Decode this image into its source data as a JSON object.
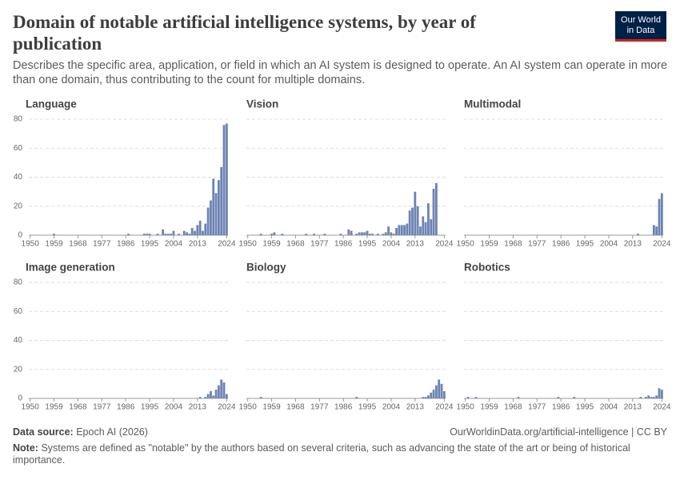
{
  "title": "Domain of notable artificial intelligence systems, by year of publication",
  "subtitle": "Describes the specific area, application, or field in which an AI system is designed to operate. An AI system can operate in more than one domain, thus contributing to the count for multiple domains.",
  "logo": [
    "Our World",
    "in Data"
  ],
  "source_label": "Data source:",
  "source": "Epoch AI (2026)",
  "url": "OurWorldinData.org/artificial-intelligence | CC BY",
  "note_label": "Note:",
  "note": "Systems are defined as \"notable\" by the authors based on several criteria, such as advancing the state of the art or being of historical importance.",
  "chart_data": [
    {
      "type": "bar",
      "title": "Language",
      "color": "#6d83b4",
      "xlim": [
        1949.5,
        2024.5
      ],
      "ylim": [
        0,
        80
      ],
      "xticks": [
        1950,
        1959,
        1968,
        1977,
        1986,
        1995,
        2004,
        2013,
        2024
      ],
      "yticks": [
        0,
        20,
        40,
        60,
        80
      ],
      "grid": true,
      "x": [
        1959,
        1987,
        1993,
        1994,
        1995,
        1998,
        2000,
        2001,
        2002,
        2003,
        2004,
        2006,
        2008,
        2009,
        2010,
        2011,
        2012,
        2013,
        2014,
        2015,
        2016,
        2017,
        2018,
        2019,
        2020,
        2021,
        2022,
        2023,
        2024
      ],
      "values": [
        1,
        1,
        1,
        1,
        1,
        1,
        4,
        1,
        1,
        1,
        3,
        1,
        3,
        2,
        1,
        5,
        3,
        7,
        10,
        3,
        8,
        19,
        24,
        39,
        29,
        38,
        47,
        76,
        77
      ]
    },
    {
      "type": "bar",
      "title": "Vision",
      "color": "#6d83b4",
      "xlim": [
        1949.5,
        2024.5
      ],
      "ylim": [
        0,
        80
      ],
      "xticks": [
        1950,
        1959,
        1968,
        1977,
        1986,
        1995,
        2004,
        2013,
        2024
      ],
      "yticks": [
        0,
        20,
        40,
        60,
        80
      ],
      "grid": true,
      "x": [
        1955,
        1959,
        1960,
        1963,
        1972,
        1975,
        1979,
        1985,
        1988,
        1989,
        1991,
        1992,
        1993,
        1994,
        1995,
        1996,
        1997,
        1999,
        2001,
        2002,
        2003,
        2004,
        2005,
        2006,
        2007,
        2008,
        2009,
        2010,
        2011,
        2012,
        2013,
        2014,
        2015,
        2016,
        2017,
        2018,
        2019,
        2020,
        2021,
        2022,
        2023,
        2024
      ],
      "values": [
        1,
        1,
        2,
        1,
        1,
        1,
        1,
        1,
        4,
        3,
        1,
        2,
        2,
        2,
        3,
        1,
        1,
        1,
        1,
        2,
        6,
        2,
        1,
        5,
        7,
        7,
        7,
        8,
        17,
        19,
        30,
        20,
        6,
        13,
        9,
        22,
        11,
        32,
        36,
        0,
        0,
        0
      ]
    },
    {
      "type": "bar",
      "title": "Multimodal",
      "color": "#6d83b4",
      "xlim": [
        1949.5,
        2024.5
      ],
      "ylim": [
        0,
        80
      ],
      "xticks": [
        1950,
        1959,
        1968,
        1977,
        1986,
        1995,
        2004,
        2013,
        2024
      ],
      "yticks": [
        0,
        20,
        40,
        60,
        80
      ],
      "grid": true,
      "x": [
        2015,
        2021,
        2022,
        2023,
        2024
      ],
      "values": [
        1,
        7,
        6,
        25,
        29
      ]
    },
    {
      "type": "bar",
      "title": "Image generation",
      "color": "#6d83b4",
      "xlim": [
        1949.5,
        2024.5
      ],
      "ylim": [
        0,
        80
      ],
      "xticks": [
        1950,
        1959,
        1968,
        1977,
        1986,
        1995,
        2004,
        2013,
        2024
      ],
      "yticks": [
        0,
        20,
        40,
        60,
        80
      ],
      "grid": true,
      "x": [
        2014,
        2016,
        2017,
        2018,
        2019,
        2020,
        2021,
        2022,
        2023,
        2024
      ],
      "values": [
        1,
        1,
        3,
        5,
        2,
        6,
        9,
        13,
        11,
        3
      ]
    },
    {
      "type": "bar",
      "title": "Biology",
      "color": "#6d83b4",
      "xlim": [
        1949.5,
        2024.5
      ],
      "ylim": [
        0,
        80
      ],
      "xticks": [
        1950,
        1959,
        1968,
        1977,
        1986,
        1995,
        2004,
        2013,
        2024
      ],
      "yticks": [
        0,
        20,
        40,
        60,
        80
      ],
      "grid": true,
      "x": [
        1955,
        1991,
        2016,
        2017,
        2018,
        2019,
        2020,
        2021,
        2022,
        2023,
        2024
      ],
      "values": [
        1,
        1,
        1,
        1,
        2,
        4,
        6,
        9,
        13,
        10,
        5
      ]
    },
    {
      "type": "bar",
      "title": "Robotics",
      "color": "#6d83b4",
      "xlim": [
        1949.5,
        2024.5
      ],
      "ylim": [
        0,
        80
      ],
      "xticks": [
        1950,
        1959,
        1968,
        1977,
        1986,
        1995,
        2004,
        2013,
        2024
      ],
      "yticks": [
        0,
        20,
        40,
        60,
        80
      ],
      "grid": true,
      "x": [
        1951,
        1954,
        1970,
        1985,
        1991,
        2016,
        2018,
        2019,
        2020,
        2021,
        2022,
        2023,
        2024
      ],
      "values": [
        1,
        1,
        1,
        1,
        1,
        1,
        1,
        2,
        1,
        1,
        2,
        7,
        6
      ]
    }
  ]
}
